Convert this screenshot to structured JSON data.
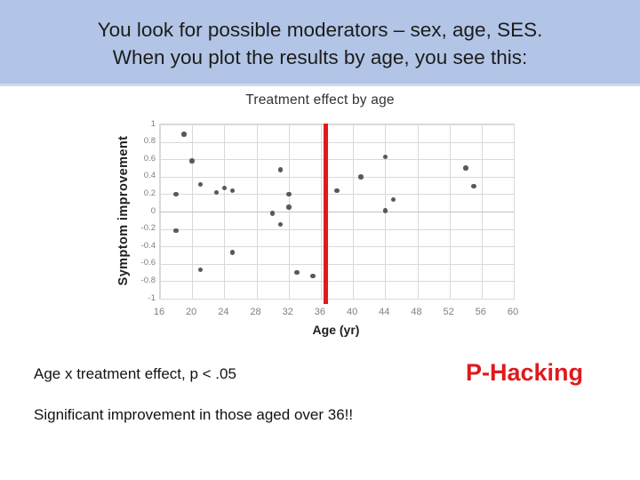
{
  "slide": {
    "header": {
      "line1": "You look for possible moderators – sex, age, SES.",
      "line2": "When you plot the results by age, you see this:",
      "bg_color": "#b2c5e6",
      "text_color": "#1c1c1c"
    },
    "notes": {
      "pvalue_text": "Age x treatment effect, p < .05",
      "conclusion_text": "Significant improvement in those aged over 36!!",
      "phacking_label": "P-Hacking",
      "phacking_color": "#e0191c"
    }
  },
  "chart_data": {
    "type": "scatter",
    "title": "Treatment effect by age",
    "xlabel": "Age (yr)",
    "ylabel": "Symptom improvement",
    "xlim": [
      16,
      60
    ],
    "ylim": [
      -1,
      1
    ],
    "x_ticks": [
      16,
      20,
      24,
      28,
      32,
      36,
      40,
      44,
      48,
      52,
      56,
      60
    ],
    "y_ticks": [
      1,
      0.8,
      0.6,
      0.4,
      0.2,
      0,
      -0.2,
      -0.4,
      -0.6,
      -0.8,
      -1
    ],
    "grid": true,
    "legend": "none",
    "point_color": "#595959",
    "gridline_color": "#d9d9d9",
    "ref_line": {
      "x": 36.6,
      "color": "#e0191c",
      "meaning": "age cutoff at 36"
    },
    "points": [
      {
        "age": 18,
        "improvement": 0.2
      },
      {
        "age": 18,
        "improvement": -0.22
      },
      {
        "age": 19,
        "improvement": 0.89
      },
      {
        "age": 20,
        "improvement": 0.58
      },
      {
        "age": 21,
        "improvement": 0.31
      },
      {
        "age": 21,
        "improvement": -0.67
      },
      {
        "age": 23,
        "improvement": 0.22
      },
      {
        "age": 24,
        "improvement": 0.27
      },
      {
        "age": 25,
        "improvement": 0.24
      },
      {
        "age": 25,
        "improvement": -0.47
      },
      {
        "age": 30,
        "improvement": -0.02
      },
      {
        "age": 31,
        "improvement": 0.48
      },
      {
        "age": 31,
        "improvement": -0.15
      },
      {
        "age": 32,
        "improvement": 0.2
      },
      {
        "age": 32,
        "improvement": 0.05
      },
      {
        "age": 33,
        "improvement": -0.7
      },
      {
        "age": 35,
        "improvement": -0.74
      },
      {
        "age": 38,
        "improvement": 0.24
      },
      {
        "age": 41,
        "improvement": 0.4
      },
      {
        "age": 44,
        "improvement": 0.63
      },
      {
        "age": 44,
        "improvement": 0.01
      },
      {
        "age": 45,
        "improvement": 0.14
      },
      {
        "age": 54,
        "improvement": 0.5
      },
      {
        "age": 55,
        "improvement": 0.29
      }
    ]
  }
}
